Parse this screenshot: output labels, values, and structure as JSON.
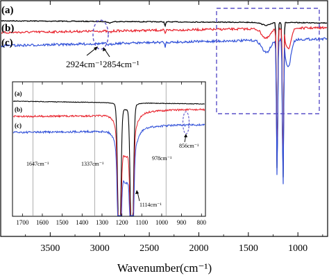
{
  "chart_data": {
    "type": "line",
    "xlabel": "Wavenumber(cm⁻¹)",
    "ylabel": "",
    "xlim": [
      4000,
      700
    ],
    "x_reversed": true,
    "y_tick_labels_shown": false,
    "xticks": [
      3500,
      3000,
      2500,
      2000,
      1500,
      1000
    ],
    "xtick_labels": [
      "3500",
      "3000",
      "2500",
      "2000",
      "1500",
      "1000"
    ],
    "grid": false,
    "series": [
      {
        "name": "(a)",
        "color": "#000000"
      },
      {
        "name": "(b)",
        "color": "#e8202a"
      },
      {
        "name": "(c)",
        "color": "#2f4fd8"
      }
    ],
    "annotations": [
      {
        "text": "2924cm⁻¹",
        "x": 2924
      },
      {
        "text": "2854cm⁻¹",
        "x": 2854
      }
    ],
    "highlight_box_x_range": [
      1760,
      760
    ],
    "inset": {
      "xlim": [
        1750,
        780
      ],
      "x_reversed": true,
      "xticks": [
        1700,
        1600,
        1500,
        1400,
        1300,
        1200,
        1100,
        1000,
        900,
        800
      ],
      "xtick_labels": [
        "1700",
        "1600",
        "1500",
        "1400",
        "1300",
        "1200",
        "1100",
        "1000",
        "900",
        "800"
      ],
      "series_labels": [
        "(a)",
        "(b)",
        "(c)"
      ],
      "reference_lines": [
        {
          "x": 1647,
          "label": "1647cm⁻¹"
        },
        {
          "x": 1337,
          "label": "1337cm⁻¹"
        },
        {
          "x": 978,
          "label": "978cm⁻¹"
        }
      ],
      "annotations": [
        {
          "text": "1114cm⁻¹",
          "x": 1114
        },
        {
          "text": "856cm⁻¹",
          "x": 856
        }
      ]
    }
  }
}
